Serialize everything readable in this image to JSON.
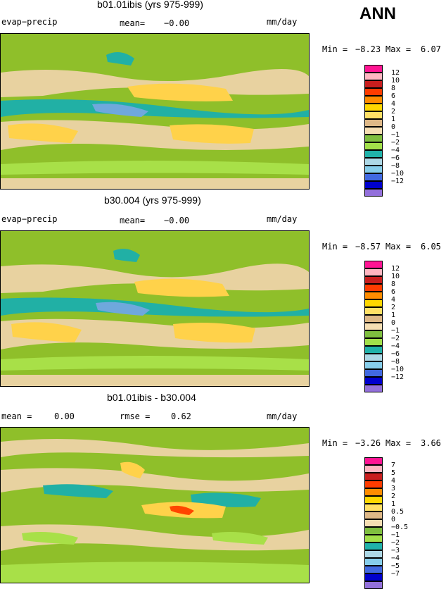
{
  "header": {
    "season": "ANN"
  },
  "panels": [
    {
      "title": "b01.01ibis (yrs 975-999)",
      "left": "evap−precip",
      "mid_label": "mean=",
      "mid_value": "−0.00",
      "units": "mm/day",
      "min_label": "Min =",
      "min": "−8.23",
      "max_label": "Max =",
      "max": "6.07",
      "legend": [
        "12",
        "10",
        "8",
        "6",
        "4",
        "2",
        "1",
        "0",
        "−1",
        "−2",
        "−4",
        "−6",
        "−8",
        "−10",
        "−12"
      ],
      "colors": [
        "#ff1493",
        "#ffb6c1",
        "#c81e1e",
        "#ff3c00",
        "#ff8c00",
        "#ffd700",
        "#ffe066",
        "#deb887",
        "#f5deb3",
        "#7fbf3f",
        "#a2e04a",
        "#20b2aa",
        "#add8e6",
        "#87ceeb",
        "#4169e1",
        "#0000cd",
        "#9370db"
      ]
    },
    {
      "title": "b30.004 (yrs 975-999)",
      "left": "evap−precip",
      "mid_label": "mean=",
      "mid_value": "−0.00",
      "units": "mm/day",
      "min_label": "Min =",
      "min": "−8.57",
      "max_label": "Max =",
      "max": "6.05",
      "legend": [
        "12",
        "10",
        "8",
        "6",
        "4",
        "2",
        "1",
        "0",
        "−1",
        "−2",
        "−4",
        "−6",
        "−8",
        "−10",
        "−12"
      ],
      "colors": [
        "#ff1493",
        "#ffb6c1",
        "#c81e1e",
        "#ff3c00",
        "#ff8c00",
        "#ffd700",
        "#ffe066",
        "#deb887",
        "#f5deb3",
        "#7fbf3f",
        "#a2e04a",
        "#20b2aa",
        "#add8e6",
        "#87ceeb",
        "#4169e1",
        "#0000cd",
        "#9370db"
      ]
    },
    {
      "title": "b01.01ibis - b30.004",
      "left": "mean =",
      "left_value": "0.00",
      "mid_label": "rmse =",
      "mid_value": "0.62",
      "units": "mm/day",
      "min_label": "Min =",
      "min": "−3.26",
      "max_label": "Max =",
      "max": "3.66",
      "legend": [
        "7",
        "5",
        "4",
        "3",
        "2",
        "1",
        "0.5",
        "0",
        "−0.5",
        "−1",
        "−2",
        "−3",
        "−4",
        "−5",
        "−7"
      ],
      "colors": [
        "#ff1493",
        "#ffb6c1",
        "#c81e1e",
        "#ff3c00",
        "#ff8c00",
        "#ffd700",
        "#ffe066",
        "#deb887",
        "#f5deb3",
        "#7fbf3f",
        "#a2e04a",
        "#20b2aa",
        "#add8e6",
        "#87ceeb",
        "#4169e1",
        "#0000cd",
        "#9370db"
      ]
    }
  ]
}
